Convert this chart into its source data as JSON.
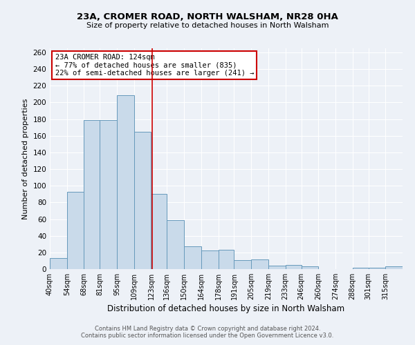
{
  "title": "23A, CROMER ROAD, NORTH WALSHAM, NR28 0HA",
  "subtitle": "Size of property relative to detached houses in North Walsham",
  "xlabel": "Distribution of detached houses by size in North Walsham",
  "ylabel": "Number of detached properties",
  "bin_labels": [
    "40sqm",
    "54sqm",
    "68sqm",
    "81sqm",
    "95sqm",
    "109sqm",
    "123sqm",
    "136sqm",
    "150sqm",
    "164sqm",
    "178sqm",
    "191sqm",
    "205sqm",
    "219sqm",
    "233sqm",
    "246sqm",
    "260sqm",
    "274sqm",
    "288sqm",
    "301sqm",
    "315sqm"
  ],
  "bar_heights": [
    13,
    93,
    179,
    179,
    209,
    165,
    90,
    59,
    27,
    22,
    23,
    11,
    12,
    4,
    5,
    3,
    0,
    0,
    2,
    2,
    3
  ],
  "bar_color": "#c9daea",
  "bar_edge_color": "#6699bb",
  "bin_edges": [
    40,
    54,
    68,
    81,
    95,
    109,
    123,
    136,
    150,
    164,
    178,
    191,
    205,
    219,
    233,
    246,
    260,
    274,
    288,
    301,
    315,
    329
  ],
  "vline_x": 124,
  "vline_color": "#cc0000",
  "annotation_title": "23A CROMER ROAD: 124sqm",
  "annotation_line1": "← 77% of detached houses are smaller (835)",
  "annotation_line2": "22% of semi-detached houses are larger (241) →",
  "annotation_box_color": "#cc0000",
  "ylim": [
    0,
    265
  ],
  "yticks": [
    0,
    20,
    40,
    60,
    80,
    100,
    120,
    140,
    160,
    180,
    200,
    220,
    240,
    260
  ],
  "footer1": "Contains HM Land Registry data © Crown copyright and database right 2024.",
  "footer2": "Contains public sector information licensed under the Open Government Licence v3.0.",
  "bg_color": "#edf1f7",
  "grid_color": "#ffffff"
}
